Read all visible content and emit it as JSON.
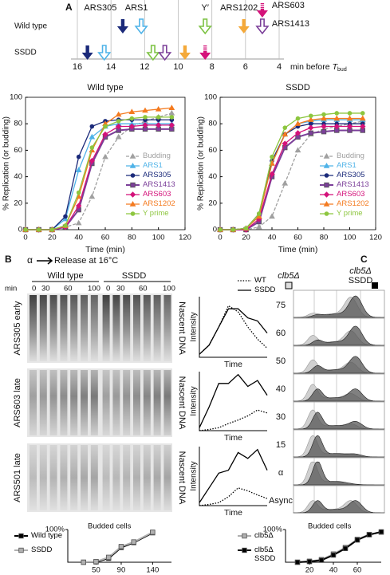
{
  "labels": {
    "panel_a": "A",
    "panel_b": "B",
    "panel_c": "C",
    "alpha": "α",
    "release": "Release at 16°C",
    "gel": {
      "columns": [
        "Wild type",
        "SSDD"
      ],
      "min": "min",
      "lanes": [
        0,
        30,
        60,
        100,
        0,
        30,
        60,
        100
      ],
      "rows": [
        "ARS305 early",
        "ARS603 late",
        "ARS501 late"
      ],
      "side": [
        "Nascent DNA",
        "Nascent DNA",
        "Nascent DNA"
      ]
    },
    "flow": {
      "strain_a": "clb5Δ",
      "strain_b": "clb5Δ",
      "strain_b_sub": "SSDD",
      "rows": [
        75,
        60,
        50,
        40,
        30,
        15,
        "α",
        "Async"
      ]
    }
  },
  "chart_data": [
    {
      "type": "timeline",
      "rows": [
        "Wild type",
        "SSDD"
      ],
      "xlim": [
        16,
        4
      ],
      "xticks": [
        16,
        14,
        12,
        10,
        8,
        6,
        4
      ],
      "xlabel": "min before",
      "xlabel_var": "T",
      "xlabel_sub": "bud",
      "series": [
        {
          "name": "ARS305",
          "color": "#1b2a7a",
          "marker": "filled",
          "values": [
            13.3,
            15.4
          ]
        },
        {
          "name": "ARS1",
          "color": "#4fb3e8",
          "marker": "open",
          "values": [
            12.2,
            14.4
          ]
        },
        {
          "name": "Y′",
          "color": "#7cc242",
          "marker": "open",
          "values": [
            8.4,
            11.5
          ]
        },
        {
          "name": "ARS1202",
          "color": "#f4a93a",
          "marker": "filled",
          "values": [
            6.1,
            9.6
          ]
        },
        {
          "name": "ARS603",
          "color": "#d4127a",
          "marker": "striped",
          "values": [
            5.0,
            8.4
          ]
        },
        {
          "name": "ARS1413",
          "color": "#7b3f99",
          "marker": "open",
          "values": [
            5.0,
            10.8
          ]
        }
      ]
    },
    {
      "type": "line",
      "title": "Wild type",
      "x": [
        0,
        10,
        20,
        30,
        40,
        50,
        60,
        70,
        80,
        90,
        100,
        110
      ],
      "xlim": [
        0,
        120
      ],
      "xticks": [
        0,
        20,
        40,
        60,
        80,
        100,
        120
      ],
      "ylim": [
        0,
        100
      ],
      "yticks": [
        0,
        20,
        40,
        60,
        80,
        100
      ],
      "xlabel": "Time (min)",
      "ylabel": "% Replication (or budding)",
      "legend": "lower right",
      "legend_colored": true,
      "frame": true,
      "series": [
        {
          "name": "Budding",
          "color": "#a0a0a0",
          "marker": "triangle",
          "dash": "dashed",
          "values": [
            0,
            0,
            0,
            2,
            5,
            25,
            55,
            70,
            78,
            82,
            85,
            88
          ]
        },
        {
          "name": "ARS1",
          "color": "#4fb3e8",
          "marker": "triangle",
          "values": [
            0,
            0,
            0,
            8,
            45,
            70,
            78,
            80,
            80,
            80,
            80,
            80
          ]
        },
        {
          "name": "ARS305",
          "color": "#1b2a7a",
          "marker": "circle",
          "values": [
            0,
            0,
            0,
            10,
            55,
            78,
            82,
            83,
            83,
            83,
            83,
            83
          ]
        },
        {
          "name": "ARS1413",
          "color": "#7b3f99",
          "marker": "square",
          "values": [
            0,
            0,
            0,
            2,
            15,
            50,
            70,
            75,
            76,
            76,
            76,
            76
          ]
        },
        {
          "name": "ARS603",
          "color": "#d4127a",
          "marker": "diamond",
          "values": [
            0,
            0,
            0,
            2,
            18,
            52,
            72,
            78,
            78,
            79,
            79,
            79
          ]
        },
        {
          "name": "ARS1202",
          "color": "#f47b20",
          "marker": "triangle",
          "values": [
            0,
            0,
            0,
            3,
            25,
            60,
            80,
            87,
            89,
            90,
            91,
            92
          ]
        },
        {
          "name": "Y prime",
          "color": "#8dc63f",
          "marker": "circle",
          "values": [
            0,
            0,
            0,
            3,
            28,
            62,
            78,
            82,
            84,
            85,
            85,
            85
          ]
        }
      ]
    },
    {
      "type": "line",
      "title": "SSDD",
      "x": [
        0,
        10,
        20,
        30,
        40,
        50,
        60,
        70,
        80,
        90,
        100,
        110
      ],
      "xlim": [
        0,
        120
      ],
      "xticks": [
        0,
        20,
        40,
        60,
        80,
        100,
        120
      ],
      "ylim": [
        0,
        100
      ],
      "yticks": [
        0,
        20,
        40,
        60,
        80,
        100
      ],
      "xlabel": "Time (min)",
      "ylabel": "% Replication (or budding)",
      "legend": "lower right",
      "legend_colored": true,
      "frame": true,
      "series": [
        {
          "name": "Budding",
          "color": "#a0a0a0",
          "marker": "triangle",
          "dash": "dashed",
          "values": [
            0,
            0,
            0,
            2,
            10,
            35,
            60,
            72,
            76,
            78,
            80,
            82
          ]
        },
        {
          "name": "ARS1",
          "color": "#4fb3e8",
          "marker": "triangle",
          "values": [
            0,
            0,
            1,
            10,
            50,
            72,
            80,
            82,
            83,
            83,
            83,
            83
          ]
        },
        {
          "name": "ARS305",
          "color": "#1b2a7a",
          "marker": "circle",
          "values": [
            0,
            0,
            1,
            12,
            52,
            72,
            78,
            80,
            80,
            80,
            80,
            80
          ]
        },
        {
          "name": "ARS1413",
          "color": "#7b3f99",
          "marker": "square",
          "values": [
            0,
            0,
            0,
            6,
            40,
            62,
            70,
            73,
            74,
            75,
            75,
            75
          ]
        },
        {
          "name": "ARS603",
          "color": "#d4127a",
          "marker": "diamond",
          "values": [
            0,
            0,
            0,
            8,
            42,
            65,
            73,
            77,
            78,
            78,
            78,
            78
          ]
        },
        {
          "name": "ARS1202",
          "color": "#f47b20",
          "marker": "triangle",
          "values": [
            0,
            0,
            1,
            10,
            50,
            72,
            80,
            83,
            84,
            84,
            84,
            84
          ]
        },
        {
          "name": "Y prime",
          "color": "#8dc63f",
          "marker": "circle",
          "values": [
            0,
            0,
            1,
            12,
            55,
            77,
            84,
            86,
            87,
            88,
            88,
            88
          ]
        }
      ]
    },
    {
      "type": "line",
      "x": [
        0,
        1,
        2,
        3,
        4,
        5,
        6,
        7
      ],
      "xlim": [
        0,
        7
      ],
      "ylim": [
        0,
        1
      ],
      "xlabel": "Time",
      "ylabel": "Intensity",
      "legend": "above",
      "series": [
        {
          "name": "WT",
          "color": "#000000",
          "dash": "dotted",
          "values": [
            0.05,
            0.2,
            0.5,
            0.85,
            0.75,
            0.5,
            0.3,
            0.15
          ]
        },
        {
          "name": "SSDD",
          "color": "#000000",
          "values": [
            0.05,
            0.2,
            0.5,
            0.8,
            0.8,
            0.65,
            0.6,
            0.4
          ]
        }
      ]
    },
    {
      "type": "line",
      "x": [
        0,
        1,
        2,
        3,
        4,
        5,
        6,
        7
      ],
      "xlim": [
        0,
        7
      ],
      "ylim": [
        0,
        1
      ],
      "xlabel": "Time",
      "ylabel": "Intensity",
      "series": [
        {
          "color": "#000000",
          "dash": "dotted",
          "values": [
            0,
            0.02,
            0.05,
            0.12,
            0.18,
            0.25,
            0.35,
            0.3
          ]
        },
        {
          "color": "#000000",
          "values": [
            0.05,
            0.4,
            0.8,
            0.8,
            0.95,
            0.75,
            0.85,
            0.6
          ]
        }
      ]
    },
    {
      "type": "line",
      "x": [
        0,
        1,
        2,
        3,
        4,
        5,
        6,
        7
      ],
      "xlim": [
        0,
        7
      ],
      "ylim": [
        0,
        1
      ],
      "xlabel": "Time",
      "ylabel": "Intensity",
      "series": [
        {
          "color": "#000000",
          "dash": "dotted",
          "values": [
            0,
            0.02,
            0.05,
            0.15,
            0.3,
            0.25,
            0.18,
            0.12
          ]
        },
        {
          "color": "#000000",
          "values": [
            0.05,
            0.3,
            0.55,
            0.6,
            0.9,
            0.8,
            0.95,
            0.6
          ]
        }
      ]
    },
    {
      "type": "line",
      "title": "Budded cells",
      "x": [
        30,
        50,
        70,
        90,
        110,
        140
      ],
      "xlim": [
        5,
        170
      ],
      "xticks": [
        50,
        90,
        140
      ],
      "ylim": [
        0,
        100
      ],
      "yticks": [
        {
          "value": 100,
          "label": "100%"
        }
      ],
      "legend": "left",
      "series": [
        {
          "name": "Wild type",
          "color": "#000000",
          "marker": "square",
          "values": [
            0,
            1,
            12,
            45,
            60,
            90
          ]
        },
        {
          "name": "SSDD",
          "color": "#b0b0b0",
          "marker": "square",
          "values": [
            0,
            2,
            15,
            48,
            62,
            92
          ]
        }
      ]
    },
    {
      "type": "line",
      "title": "Budded cells",
      "x": [
        10,
        20,
        30,
        40,
        50,
        60,
        70,
        80
      ],
      "xlim": [
        0,
        80
      ],
      "xticks": [
        20,
        40,
        60
      ],
      "ylim": [
        0,
        100
      ],
      "yticks": [
        {
          "value": 100,
          "label": "100%"
        }
      ],
      "legend": "left",
      "series": [
        {
          "name": "clb5Δ",
          "color": "#b0b0b0",
          "marker": "square",
          "values": [
            0,
            3,
            8,
            25,
            45,
            70,
            85,
            92
          ]
        },
        {
          "name": "clb5Δ SSDD",
          "color": "#000000",
          "marker": "square",
          "values": [
            0,
            2,
            6,
            22,
            42,
            68,
            84,
            93
          ]
        }
      ]
    }
  ]
}
